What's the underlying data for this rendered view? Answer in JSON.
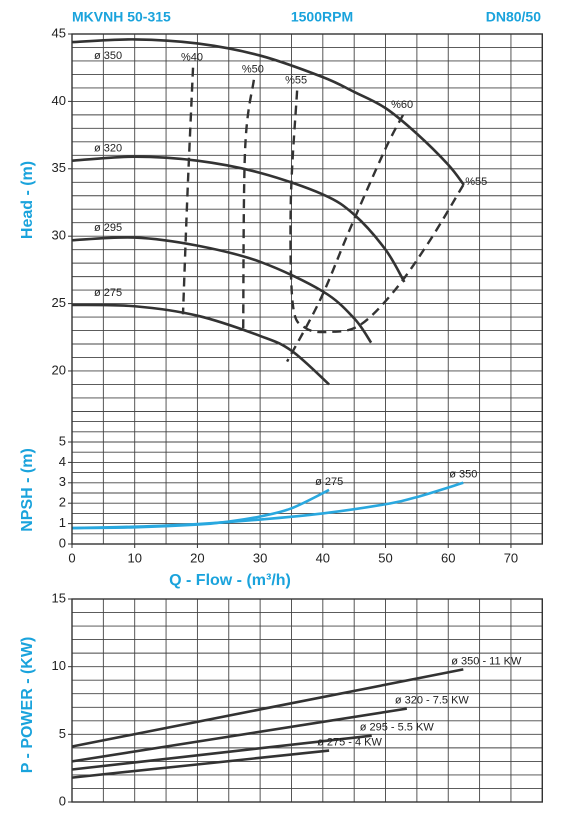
{
  "header": {
    "model": "MKVNH 50-315",
    "speed": "1500RPM",
    "connection": "DN80/50"
  },
  "chart_data": [
    {
      "type": "line",
      "y_label": "Head - (m)",
      "xlim": [
        0,
        75
      ],
      "ylim": [
        17,
        45
      ],
      "yticks": [
        20,
        25,
        30,
        35,
        40,
        45
      ],
      "xgrid": [
        0,
        5,
        10,
        15,
        20,
        25,
        30,
        35,
        40,
        45,
        50,
        55,
        60,
        65,
        70,
        75
      ],
      "ygrid": [
        17,
        18,
        19,
        20,
        21,
        22,
        23,
        24,
        25,
        26,
        27,
        28,
        29,
        30,
        31,
        32,
        33,
        34,
        35,
        36,
        37,
        38,
        39,
        40,
        41,
        42,
        43,
        44,
        45
      ],
      "series": [
        {
          "name": "ø 350",
          "color": "#333333",
          "x": [
            0,
            10,
            20,
            30,
            40,
            45,
            50,
            55,
            60,
            62.5
          ],
          "values": [
            44.4,
            44.6,
            44.3,
            43.4,
            41.8,
            40.7,
            39.5,
            37.6,
            35.3,
            33.8
          ]
        },
        {
          "name": "ø 320",
          "color": "#333333",
          "x": [
            0,
            10,
            20,
            30,
            40,
            45,
            50,
            53
          ],
          "values": [
            35.6,
            35.9,
            35.6,
            34.7,
            33.1,
            31.6,
            29.0,
            26.6
          ]
        },
        {
          "name": "ø 295",
          "color": "#333333",
          "x": [
            0,
            10,
            20,
            30,
            40,
            45,
            47.7
          ],
          "values": [
            29.7,
            29.9,
            29.3,
            28.1,
            25.9,
            23.9,
            22.1
          ]
        },
        {
          "name": "ø 275",
          "color": "#333333",
          "x": [
            0,
            10,
            20,
            30,
            35,
            41
          ],
          "values": [
            24.9,
            24.8,
            24.1,
            22.6,
            21.5,
            19.0
          ]
        },
        {
          "name": "%40",
          "color": "#333333",
          "dashed": true,
          "x": [
            19.3,
            18.4,
            17.7
          ],
          "values": [
            42.5,
            33,
            24.2
          ]
        },
        {
          "name": "%50",
          "color": "#333333",
          "dashed": true,
          "x": [
            29.0,
            27.6,
            27.3
          ],
          "values": [
            41.6,
            36.4,
            23.0
          ]
        },
        {
          "name": "%55",
          "end_label": "%55",
          "color": "#333333",
          "dashed": true,
          "x": [
            35.9,
            34.9,
            35.2,
            37.2,
            41.1,
            45.9,
            51.5,
            57.1,
            62.4
          ],
          "values": [
            40.8,
            32.7,
            25.0,
            23.2,
            22.9,
            23.4,
            26.0,
            29.7,
            33.8
          ]
        },
        {
          "name": "%60",
          "color": "#333333",
          "dashed": true,
          "x": [
            52.8,
            49.9,
            44.3,
            39.6,
            34.3
          ],
          "values": [
            39.0,
            36.4,
            30.5,
            25.3,
            20.7
          ]
        }
      ]
    },
    {
      "type": "line",
      "y_label": "NPSH - (m)",
      "x_label": "Q - Flow - (m³/h)",
      "xlim": [
        0,
        75
      ],
      "ylim": [
        0,
        6.5
      ],
      "xticks": [
        0,
        10,
        20,
        30,
        40,
        50,
        60,
        70
      ],
      "yticks": [
        0,
        1,
        2,
        3,
        4,
        5
      ],
      "xgrid": [
        0,
        5,
        10,
        15,
        20,
        25,
        30,
        35,
        40,
        45,
        50,
        55,
        60,
        65,
        70,
        75
      ],
      "ygrid": [
        0,
        0.5,
        1,
        1.5,
        2,
        2.5,
        3,
        3.5,
        4,
        4.5,
        5,
        5.5,
        6,
        6.5
      ],
      "series": [
        {
          "name": "ø 275",
          "color": "#29a8df",
          "x": [
            0,
            10,
            20,
            25,
            30,
            35,
            41
          ],
          "values": [
            0.78,
            0.82,
            0.95,
            1.1,
            1.35,
            1.75,
            2.65
          ]
        },
        {
          "name": "ø 350",
          "color": "#29a8df",
          "x": [
            0,
            10,
            20,
            30,
            40,
            50,
            55,
            62.4
          ],
          "values": [
            0.78,
            0.85,
            0.98,
            1.2,
            1.5,
            1.95,
            2.3,
            3.0
          ]
        }
      ]
    },
    {
      "type": "line",
      "y_label": "P - POWER - (KW)",
      "xlim": [
        0,
        75
      ],
      "ylim": [
        0,
        15
      ],
      "yticks": [
        0,
        5,
        10,
        15
      ],
      "xgrid": [
        0,
        5,
        10,
        15,
        20,
        25,
        30,
        35,
        40,
        45,
        50,
        55,
        60,
        65,
        70,
        75
      ],
      "ygrid": [
        0,
        1,
        2,
        3,
        4,
        5,
        6,
        7,
        8,
        9,
        10,
        11,
        12,
        13,
        14,
        15
      ],
      "series": [
        {
          "name": "ø 350 - 11 KW",
          "color": "#333333",
          "x": [
            0,
            62.4
          ],
          "values": [
            4.1,
            9.8
          ]
        },
        {
          "name": "ø 320 - 7.5 KW",
          "color": "#333333",
          "x": [
            0,
            53.4
          ],
          "values": [
            3.0,
            6.9
          ]
        },
        {
          "name": "ø 295 - 5.5 KW",
          "color": "#333333",
          "x": [
            0,
            47.8
          ],
          "values": [
            2.4,
            4.9
          ]
        },
        {
          "name": "ø 275 - 4 KW",
          "color": "#333333",
          "x": [
            0,
            41
          ],
          "values": [
            1.8,
            3.8
          ]
        }
      ]
    }
  ]
}
